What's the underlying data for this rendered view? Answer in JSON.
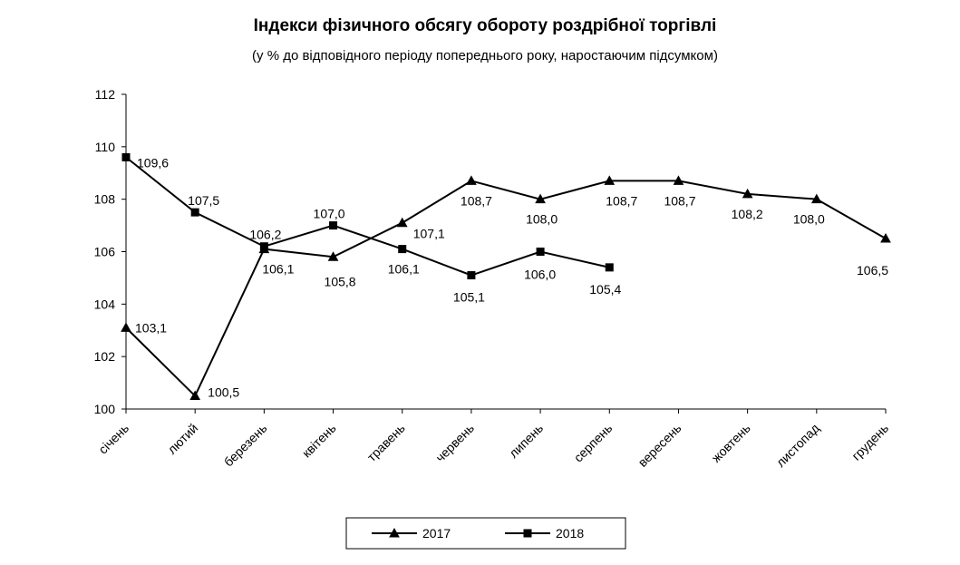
{
  "chart_data": {
    "type": "line",
    "title": "Індекси фізичного обсягу обороту роздрібної торгівлі",
    "subtitle": "(у % до відповідного періоду попереднього року, наростаючим підсумком)",
    "categories": [
      "січень",
      "лютий",
      "березень",
      "квітень",
      "травень",
      "червень",
      "липень",
      "серпень",
      "вересень",
      "жовтень",
      "листопад",
      "грудень"
    ],
    "series": [
      {
        "name": "2017",
        "color": "#000000",
        "marker": "triangle",
        "values": [
          103.1,
          100.5,
          106.1,
          105.8,
          107.1,
          108.7,
          108.0,
          108.7,
          108.7,
          108.2,
          108.0,
          106.5
        ],
        "value_labels": [
          "103,1",
          "100,5",
          "106,1",
          "105,8",
          "107,1",
          "108,7",
          "108,0",
          "108,7",
          "108,7",
          "108,2",
          "108,0",
          "106,5"
        ]
      },
      {
        "name": "2018",
        "color": "#000000",
        "marker": "square",
        "values": [
          109.6,
          107.5,
          106.2,
          107.0,
          106.1,
          105.1,
          106.0,
          105.4,
          null,
          null,
          null,
          null
        ],
        "value_labels": [
          "109,6",
          "107,5",
          "106,2",
          "107,0",
          "106,1",
          "105,1",
          "106,0",
          "105,4",
          null,
          null,
          null,
          null
        ]
      }
    ],
    "ylim": [
      100,
      112
    ],
    "yticks": [
      100,
      102,
      104,
      106,
      108,
      110,
      112
    ],
    "grid": false,
    "legend": "bottom"
  }
}
